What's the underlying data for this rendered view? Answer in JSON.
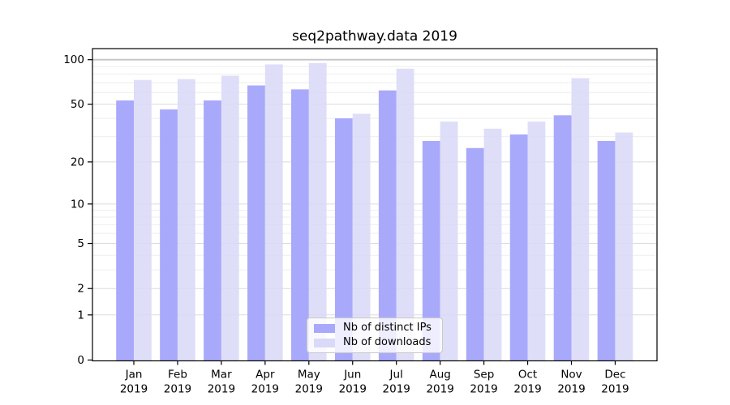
{
  "chart_data": {
    "type": "bar",
    "title": "seq2pathway.data 2019",
    "categories": [
      "Jan 2019",
      "Feb 2019",
      "Mar 2019",
      "Apr 2019",
      "May 2019",
      "Jun 2019",
      "Jul 2019",
      "Aug 2019",
      "Sep 2019",
      "Oct 2019",
      "Nov 2019",
      "Dec 2019"
    ],
    "series": [
      {
        "name": "Nb of distinct IPs",
        "color": "#a9a9fb",
        "values": [
          53,
          46,
          53,
          67,
          63,
          40,
          62,
          28,
          25,
          31,
          42,
          28
        ]
      },
      {
        "name": "Nb of downloads",
        "color": "#d9d9f8",
        "values": [
          73,
          74,
          78,
          93,
          95,
          43,
          87,
          38,
          34,
          38,
          75,
          32
        ]
      }
    ],
    "xlabel": "",
    "ylabel": "",
    "y_scale": "log10(value+1)",
    "y_ticks": [
      0,
      1,
      2,
      5,
      10,
      20,
      50,
      100
    ],
    "y_minor_gridlines": [
      3,
      4,
      6,
      7,
      8,
      9,
      30,
      40,
      60,
      70,
      80,
      90
    ],
    "ylim": [
      0,
      120
    ],
    "grid": true,
    "legend_position": "inside-bottom-center"
  },
  "colors": {
    "background": "#ffffff",
    "axis": "#000000",
    "grid_major": "#dcdcdc",
    "grid_minor": "#eeeeee",
    "grid_top": "#c4c4c4",
    "legend_border": "#c9c9c9",
    "text": "#000000"
  }
}
